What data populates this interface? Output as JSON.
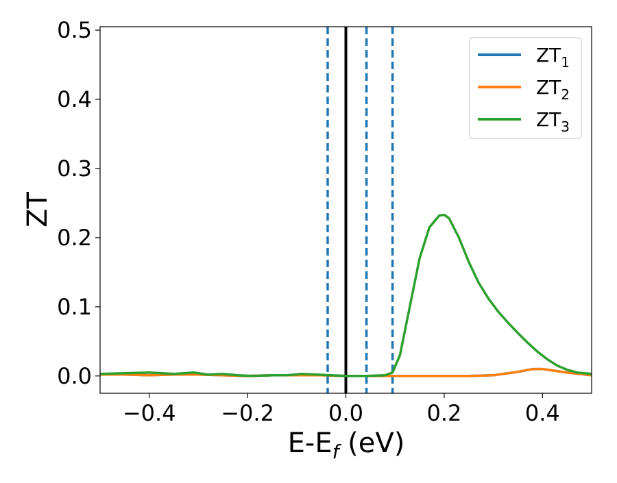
{
  "chart_data": {
    "type": "line",
    "xlabel_main": "E-E",
    "xlabel_sub": "f",
    "xlabel_unit": " (eV)",
    "ylabel": "ZT",
    "xlim": [
      -0.5,
      0.5
    ],
    "ylim": [
      -0.025,
      0.505
    ],
    "grid": false,
    "legend_position": "top-right",
    "x_ticks": [
      {
        "value": -0.4,
        "label": "−0.4"
      },
      {
        "value": -0.2,
        "label": "−0.2"
      },
      {
        "value": 0.0,
        "label": "0.0"
      },
      {
        "value": 0.2,
        "label": "0.2"
      },
      {
        "value": 0.4,
        "label": "0.4"
      }
    ],
    "y_ticks": [
      {
        "value": 0.0,
        "label": "0.0"
      },
      {
        "value": 0.1,
        "label": "0.1"
      },
      {
        "value": 0.2,
        "label": "0.2"
      },
      {
        "value": 0.3,
        "label": "0.3"
      },
      {
        "value": 0.4,
        "label": "0.4"
      },
      {
        "value": 0.5,
        "label": "0.5"
      }
    ],
    "vertical_lines": [
      {
        "x": 0.0,
        "style": "solid",
        "color": "#000000"
      },
      {
        "x": -0.037,
        "style": "dashed",
        "color": "#1f77b4"
      },
      {
        "x": 0.042,
        "style": "dashed",
        "color": "#1f77b4"
      },
      {
        "x": 0.095,
        "style": "dashed",
        "color": "#1f77b4"
      }
    ],
    "series": [
      {
        "name": "ZT",
        "subscript": "1",
        "color": "#1f77b4",
        "x": [
          -0.5,
          -0.45,
          -0.4,
          -0.35,
          -0.3,
          -0.25,
          -0.2,
          -0.15,
          -0.1,
          -0.05,
          0.0,
          0.05,
          0.1,
          0.15,
          0.2,
          0.25,
          0.3,
          0.35,
          0.38,
          0.4,
          0.45,
          0.5
        ],
        "y": [
          0.002,
          0.002,
          0.001,
          0.002,
          0.002,
          0.001,
          0.0,
          0.001,
          0.001,
          0.001,
          0.0,
          0.0,
          0.0,
          0.0,
          0.0,
          0.0,
          0.001,
          0.006,
          0.01,
          0.01,
          0.005,
          0.001
        ]
      },
      {
        "name": "ZT",
        "subscript": "2",
        "color": "#ff7f0e",
        "x": [
          -0.5,
          -0.45,
          -0.4,
          -0.35,
          -0.3,
          -0.25,
          -0.2,
          -0.15,
          -0.1,
          -0.05,
          0.0,
          0.05,
          0.1,
          0.15,
          0.2,
          0.25,
          0.3,
          0.35,
          0.38,
          0.4,
          0.45,
          0.5
        ],
        "y": [
          0.002,
          0.002,
          0.001,
          0.002,
          0.002,
          0.001,
          0.0,
          0.001,
          0.001,
          0.001,
          0.0,
          0.0,
          0.0,
          0.0,
          0.0,
          0.0,
          0.001,
          0.006,
          0.01,
          0.01,
          0.005,
          0.001
        ]
      },
      {
        "name": "ZT",
        "subscript": "3",
        "color": "#2ca02c",
        "x": [
          -0.5,
          -0.45,
          -0.4,
          -0.35,
          -0.31,
          -0.28,
          -0.25,
          -0.22,
          -0.19,
          -0.15,
          -0.12,
          -0.09,
          -0.06,
          -0.03,
          0.0,
          0.04,
          0.08,
          0.095,
          0.11,
          0.13,
          0.15,
          0.17,
          0.19,
          0.2,
          0.21,
          0.23,
          0.25,
          0.27,
          0.29,
          0.31,
          0.33,
          0.35,
          0.37,
          0.39,
          0.41,
          0.43,
          0.45,
          0.47,
          0.5
        ],
        "y": [
          0.003,
          0.004,
          0.005,
          0.003,
          0.005,
          0.002,
          0.003,
          0.001,
          0.0,
          0.001,
          0.001,
          0.003,
          0.002,
          0.001,
          0.0,
          0.0,
          0.001,
          0.005,
          0.03,
          0.1,
          0.17,
          0.215,
          0.232,
          0.233,
          0.228,
          0.2,
          0.165,
          0.135,
          0.112,
          0.093,
          0.077,
          0.062,
          0.048,
          0.035,
          0.024,
          0.015,
          0.009,
          0.005,
          0.003
        ]
      }
    ]
  }
}
